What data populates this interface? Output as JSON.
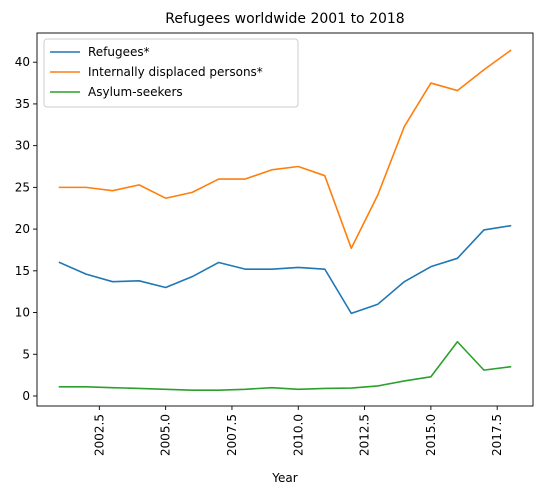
{
  "chart_data": {
    "type": "line",
    "title": "Refugees worldwide 2001 to 2018",
    "xlabel": "Year",
    "ylabel": "",
    "x": [
      2001,
      2002,
      2003,
      2004,
      2005,
      2006,
      2007,
      2008,
      2009,
      2010,
      2011,
      2012,
      2013,
      2014,
      2015,
      2016,
      2017,
      2018
    ],
    "xlim": [
      2000.15,
      2018.85
    ],
    "ylim": [
      -1.2,
      43.5
    ],
    "xticks": [
      2002.5,
      2005.0,
      2007.5,
      2010.0,
      2012.5,
      2015.0,
      2017.5
    ],
    "xtick_labels": [
      "2002.5",
      "2005.0",
      "2007.5",
      "2010.0",
      "2012.5",
      "2015.0",
      "2017.5"
    ],
    "yticks": [
      0,
      5,
      10,
      15,
      20,
      25,
      30,
      35,
      40
    ],
    "ytick_labels": [
      "0",
      "5",
      "10",
      "15",
      "20",
      "25",
      "30",
      "35",
      "40"
    ],
    "grid": false,
    "legend_position": "top-left",
    "series": [
      {
        "name": "Refugees*",
        "color": "#1f77b4",
        "values": [
          16.0,
          14.6,
          13.7,
          13.8,
          13.0,
          14.3,
          16.0,
          15.2,
          15.2,
          15.4,
          15.2,
          9.9,
          11.0,
          13.7,
          15.5,
          16.5,
          19.9,
          20.4
        ]
      },
      {
        "name": "Internally displaced persons*",
        "color": "#ff7f0e",
        "values": [
          25.0,
          25.0,
          24.6,
          25.3,
          23.7,
          24.4,
          26.0,
          26.0,
          27.1,
          27.5,
          26.4,
          17.7,
          24.1,
          32.3,
          37.5,
          36.6,
          39.1,
          41.4
        ]
      },
      {
        "name": "Asylum-seekers",
        "color": "#2ca02c",
        "values": [
          1.1,
          1.1,
          1.0,
          0.9,
          0.8,
          0.7,
          0.7,
          0.8,
          1.0,
          0.8,
          0.9,
          0.95,
          1.2,
          1.8,
          2.3,
          6.5,
          3.1,
          3.5
        ]
      }
    ]
  }
}
